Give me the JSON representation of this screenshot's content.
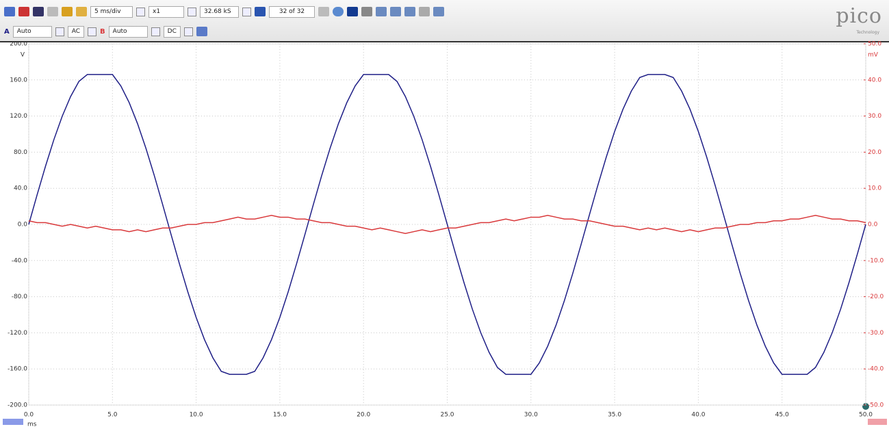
{
  "toolbar": {
    "timebase": "5 ms/div",
    "zoom": "x1",
    "samples": "32.68 kS",
    "buffer": "32 of 32",
    "channel_a": {
      "label": "A",
      "range": "Auto",
      "coupling": "AC"
    },
    "channel_b": {
      "label": "B",
      "range": "Auto",
      "coupling": "DC"
    },
    "logo": "pico",
    "logo_sub": "Technology"
  },
  "chart_data": {
    "type": "line",
    "y_label": "V",
    "y2_label": "mV",
    "x_label": "ms",
    "grid": true,
    "x": [
      0,
      0.5,
      1,
      1.5,
      2,
      2.5,
      3,
      3.5,
      4,
      4.5,
      5,
      5.5,
      6,
      6.5,
      7,
      7.5,
      8,
      8.5,
      9,
      9.5,
      10,
      10.5,
      11,
      11.5,
      12,
      12.5,
      13,
      13.5,
      14,
      14.5,
      15,
      15.5,
      16,
      16.5,
      17,
      17.5,
      18,
      18.5,
      19,
      19.5,
      20,
      20.5,
      21,
      21.5,
      22,
      22.5,
      23,
      23.5,
      24,
      24.5,
      25,
      25.5,
      26,
      26.5,
      27,
      27.5,
      28,
      28.5,
      29,
      29.5,
      30,
      30.5,
      31,
      31.5,
      32,
      32.5,
      33,
      33.5,
      34,
      34.5,
      35,
      35.5,
      36,
      36.5,
      37,
      37.5,
      38,
      38.5,
      39,
      39.5,
      40,
      40.5,
      41,
      41.5,
      42,
      42.5,
      43,
      43.5,
      44,
      44.5,
      45,
      45.5,
      46,
      46.5,
      47,
      47.5,
      48,
      48.5,
      49,
      49.5,
      50
    ],
    "series": [
      {
        "color": "#1e1e86",
        "values": [
          0,
          32.8,
          64.4,
          93.8,
          119.8,
          141.6,
          158.4,
          166,
          166,
          166,
          166,
          153.4,
          134.9,
          111.5,
          84.3,
          54.1,
          21.9,
          -11,
          -43.5,
          -74.5,
          -102.9,
          -127.6,
          -147.7,
          -162.7,
          -166,
          -166,
          -166,
          -162.7,
          -147.7,
          -127.6,
          -102.9,
          -74.5,
          -43.5,
          -11,
          21.9,
          54.1,
          84.3,
          111.5,
          134.8,
          153.4,
          166,
          166,
          166,
          166,
          158.3,
          141.6,
          119.8,
          93.8,
          64.4,
          32.8,
          0,
          -32.8,
          -64.4,
          -93.8,
          -119.8,
          -141.6,
          -158.4,
          -166,
          -166,
          -166,
          -166,
          -153.4,
          -134.9,
          -111.5,
          -84.3,
          -54.1,
          -21.9,
          11,
          43.5,
          74.5,
          102.9,
          127.6,
          147.7,
          162.7,
          166,
          166,
          166,
          162.7,
          147.7,
          127.6,
          102.9,
          74.5,
          43.5,
          11,
          -21.9,
          -54.1,
          -84.3,
          -111.5,
          -134.8,
          -153.4,
          -166,
          -166,
          -166,
          -166,
          -158.3,
          -141.6,
          -119.8,
          -93.8,
          -64.4,
          -32.8,
          0
        ]
      },
      {
        "color": "#d9383a",
        "axis": "y2",
        "values": [
          1,
          0.5,
          0.5,
          0,
          -0.5,
          0,
          -0.5,
          -1,
          -0.5,
          -1,
          -1.5,
          -1.5,
          -2,
          -1.5,
          -2,
          -1.5,
          -1,
          -1,
          -0.5,
          0,
          0,
          0.5,
          0.5,
          1,
          1.5,
          2,
          1.5,
          1.5,
          2,
          2.5,
          2,
          2,
          1.5,
          1.5,
          1,
          0.5,
          0.5,
          0,
          -0.5,
          -0.5,
          -1,
          -1.5,
          -1,
          -1.5,
          -2,
          -2.5,
          -2,
          -1.5,
          -2,
          -1.5,
          -1,
          -1,
          -0.5,
          0,
          0.5,
          0.5,
          1,
          1.5,
          1,
          1.5,
          2,
          2,
          2.5,
          2,
          1.5,
          1.5,
          1,
          1,
          0.5,
          0,
          -0.5,
          -0.5,
          -1,
          -1.5,
          -1,
          -1.5,
          -1,
          -1.5,
          -2,
          -1.5,
          -2,
          -1.5,
          -1,
          -1,
          -0.5,
          0,
          0,
          0.5,
          0.5,
          1,
          1,
          1.5,
          1.5,
          2,
          2.5,
          2,
          1.5,
          1.5,
          1,
          1,
          0.5
        ]
      }
    ],
    "xlim": [
      0,
      50
    ],
    "xticks": [
      {
        "value": 0,
        "label": "0.0"
      },
      {
        "value": 5,
        "label": "5.0"
      },
      {
        "value": 10,
        "label": "10.0"
      },
      {
        "value": 15,
        "label": "15.0"
      },
      {
        "value": 20,
        "label": "20.0"
      },
      {
        "value": 25,
        "label": "25.0"
      },
      {
        "value": 30,
        "label": "30.0"
      },
      {
        "value": 35,
        "label": "35.0"
      },
      {
        "value": 40,
        "label": "40.0"
      },
      {
        "value": 45,
        "label": "45.0"
      },
      {
        "value": 50,
        "label": "50.0"
      }
    ],
    "ylim": [
      -200,
      200
    ],
    "yticks": [
      {
        "value": 200,
        "label": "200.0"
      },
      {
        "value": 160,
        "label": "160.0"
      },
      {
        "value": 120,
        "label": "120.0"
      },
      {
        "value": 80,
        "label": "80.0"
      },
      {
        "value": 40,
        "label": "40.0"
      },
      {
        "value": 0,
        "label": "0.0"
      },
      {
        "value": -40,
        "label": "-40.0"
      },
      {
        "value": -80,
        "label": "-80.0"
      },
      {
        "value": -120,
        "label": "-120.0"
      },
      {
        "value": -160,
        "label": "-160.0"
      },
      {
        "value": -200,
        "label": "-200.0"
      }
    ],
    "y2lim": [
      -50,
      50
    ],
    "y2ticks": [
      {
        "value": 50,
        "label": "50.0"
      },
      {
        "value": 40,
        "label": "40.0"
      },
      {
        "value": 30,
        "label": "30.0"
      },
      {
        "value": 20,
        "label": "20.0"
      },
      {
        "value": 10,
        "label": "10.0"
      },
      {
        "value": 0,
        "label": "0.0"
      },
      {
        "value": -10,
        "label": "-10.0"
      },
      {
        "value": -20,
        "label": "-20.0"
      },
      {
        "value": -30,
        "label": "-30.0"
      },
      {
        "value": -40,
        "label": "-40.0"
      },
      {
        "value": -50,
        "label": "-50.0"
      }
    ]
  }
}
